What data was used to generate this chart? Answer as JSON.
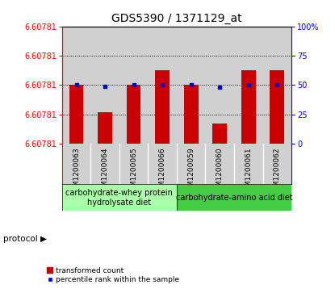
{
  "title": "GDS5390 / 1371129_at",
  "samples": [
    "GSM1200063",
    "GSM1200064",
    "GSM1200065",
    "GSM1200066",
    "GSM1200059",
    "GSM1200060",
    "GSM1200061",
    "GSM1200062"
  ],
  "bar_heights_pct": [
    50,
    27,
    50,
    63,
    50,
    17,
    63,
    63
  ],
  "percentile_dots_pct": [
    50,
    49,
    50,
    50,
    50,
    48,
    50,
    50
  ],
  "y_min": 6.6077,
  "y_max": 6.60784,
  "y_tick_label": "6.60781",
  "y_right_ticks": [
    0,
    25,
    50,
    75,
    100
  ],
  "bar_color": "#cc0000",
  "dot_color": "#0000cc",
  "protocols": [
    {
      "label": "carbohydrate-whey protein\nhydrolysate diet",
      "n_samples": 4,
      "color": "#aaffaa"
    },
    {
      "label": "carbohydrate-amino acid diet",
      "n_samples": 4,
      "color": "#44cc44"
    }
  ],
  "protocol_label": "protocol",
  "legend_bar_label": "transformed count",
  "legend_dot_label": "percentile rank within the sample",
  "grid_lines_pct": [
    25,
    50,
    75
  ],
  "col_bg_color": "#d0d0d0",
  "plot_bg": "#ffffff",
  "title_fontsize": 10,
  "tick_fontsize": 7,
  "sample_fontsize": 6.5,
  "proto_fontsize": 7
}
